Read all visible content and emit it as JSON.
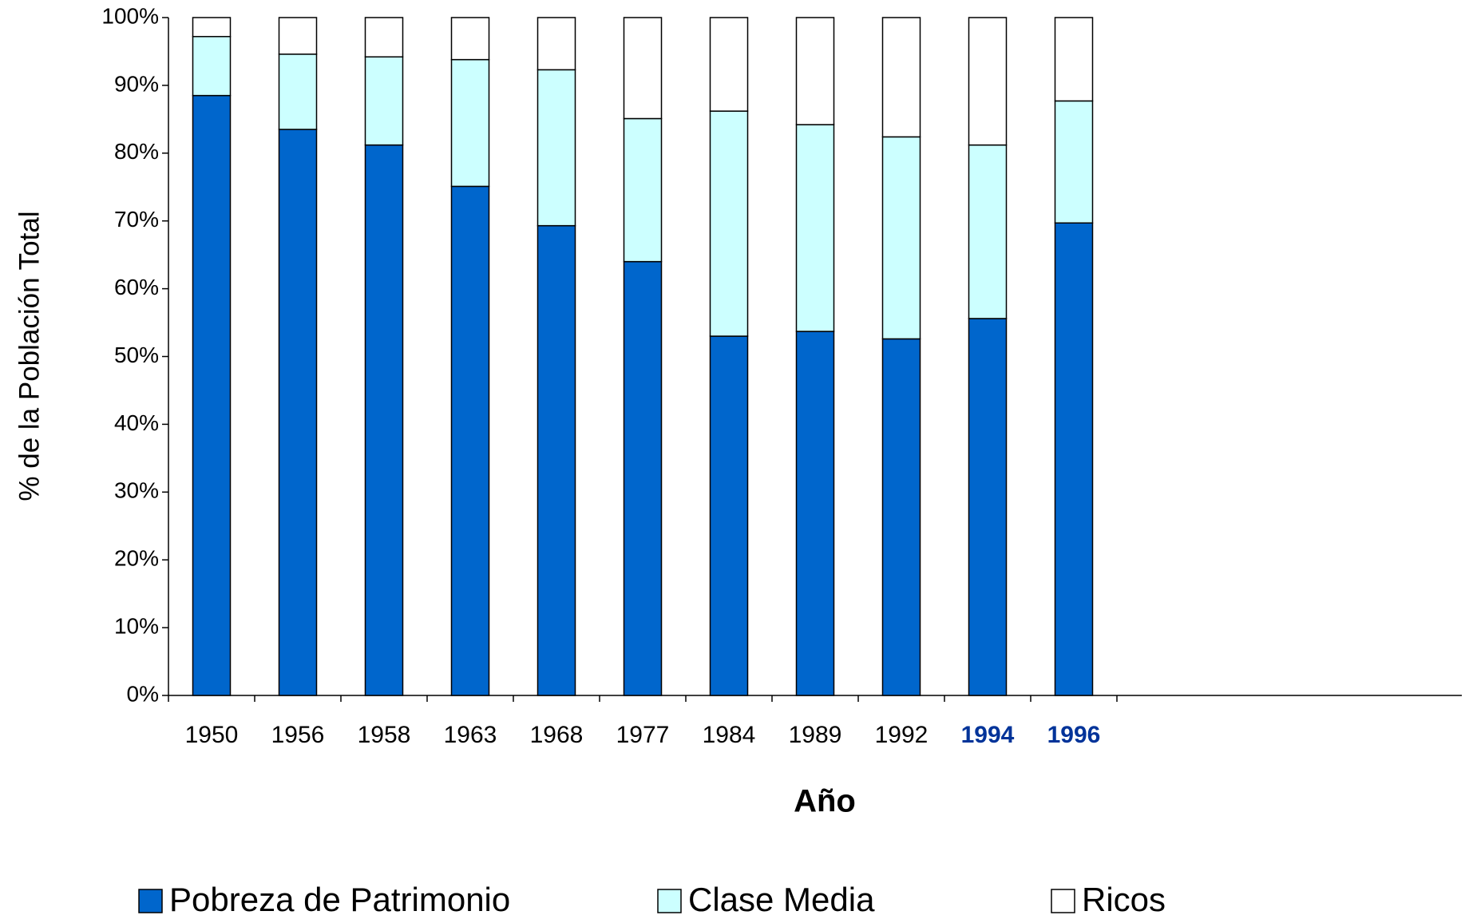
{
  "chart_data": {
    "type": "stacked_bar",
    "x_label": "Año",
    "y_label": "% de la Población Total",
    "categories": [
      "1950",
      "1956",
      "1958",
      "1963",
      "1968",
      "1977",
      "1984",
      "1989",
      "1992",
      "1994",
      "1996"
    ],
    "highlighted_categories": [
      "1994",
      "1996"
    ],
    "highlight_color": "#003399",
    "series": [
      {
        "name": "Pobreza de Patrimonio",
        "color": "#0066cc",
        "values": [
          88.5,
          83.5,
          81.2,
          75.1,
          69.3,
          64.0,
          53.0,
          53.7,
          52.6,
          55.6,
          69.7
        ]
      },
      {
        "name": "Clase Media",
        "color": "#ccffff",
        "values": [
          8.7,
          11.1,
          13.0,
          18.7,
          23.0,
          21.1,
          33.2,
          30.5,
          29.8,
          25.6,
          18.0
        ]
      },
      {
        "name": "Ricos",
        "color": "#ffffff",
        "values": [
          2.8,
          5.4,
          5.8,
          6.2,
          7.7,
          14.9,
          13.8,
          15.8,
          17.6,
          18.8,
          12.3
        ]
      }
    ],
    "ylim": [
      0,
      100
    ],
    "yticks": [
      {
        "value": 0,
        "label": "0%"
      },
      {
        "value": 10,
        "label": "10%"
      },
      {
        "value": 20,
        "label": "20%"
      },
      {
        "value": 30,
        "label": "30%"
      },
      {
        "value": 40,
        "label": "40%"
      },
      {
        "value": 50,
        "label": "50%"
      },
      {
        "value": 60,
        "label": "60%"
      },
      {
        "value": 70,
        "label": "70%"
      },
      {
        "value": 80,
        "label": "80%"
      },
      {
        "value": 90,
        "label": "90%"
      },
      {
        "value": 100,
        "label": "100%"
      }
    ],
    "grid": false,
    "legend": "bottom"
  }
}
